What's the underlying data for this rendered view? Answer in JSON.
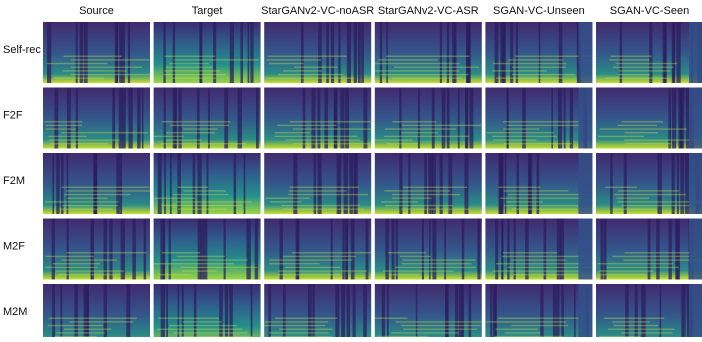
{
  "columns": [
    "Source",
    "Target",
    "StarGANv2-VC-noASR",
    "StarGANv2-VC-ASR",
    "SGAN-VC-Unseen",
    "SGAN-VC-Seen"
  ],
  "rows": [
    "Self-rec",
    "F2F",
    "F2M",
    "M2F",
    "M2M"
  ]
}
